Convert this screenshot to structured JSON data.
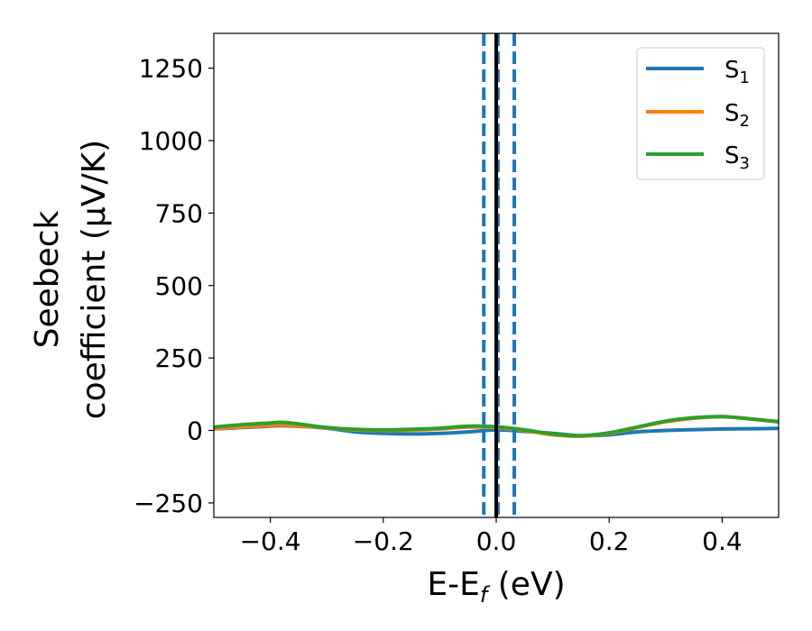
{
  "chart_data": {
    "type": "line",
    "xlabel": {
      "main": "E-E",
      "sub": "f",
      "suffix": " (eV)"
    },
    "ylabel": {
      "line1": "Seebeck",
      "line2": "coefficient  (μV/K)"
    },
    "xlim": [
      -0.5,
      0.5
    ],
    "ylim": [
      -300,
      1370
    ],
    "xticks": [
      -0.4,
      -0.2,
      0.0,
      0.2,
      0.4
    ],
    "xtick_labels": [
      "−0.4",
      "−0.2",
      "0.0",
      "0.2",
      "0.4"
    ],
    "yticks": [
      -250,
      0,
      250,
      500,
      750,
      1000,
      1250
    ],
    "ytick_labels": [
      "−250",
      "0",
      "250",
      "500",
      "750",
      "1000",
      "1250"
    ],
    "legend_position": "top-right",
    "reference_lines": {
      "solid": {
        "x": 0.0,
        "color": "#000000"
      },
      "dashed": [
        {
          "x": -0.022,
          "color": "#1f77b4"
        },
        {
          "x": 0.003,
          "color": "#1f77b4"
        },
        {
          "x": 0.032,
          "color": "#1f77b4"
        }
      ]
    },
    "series": [
      {
        "name": "S",
        "subscript": "1",
        "color": "#1f77b4",
        "x": [
          -0.5,
          -0.45,
          -0.4,
          -0.37,
          -0.3,
          -0.25,
          -0.2,
          -0.15,
          -0.1,
          -0.05,
          0.0,
          0.05,
          0.1,
          0.15,
          0.2,
          0.25,
          0.3,
          0.35,
          0.4,
          0.45,
          0.5
        ],
        "y": [
          5,
          10,
          15,
          16,
          8,
          -5,
          -10,
          -12,
          -10,
          -5,
          2,
          -3,
          -10,
          -18,
          -15,
          -5,
          0,
          3,
          5,
          6,
          7
        ]
      },
      {
        "name": "S",
        "subscript": "2",
        "color": "#ff7f0e",
        "x": [
          -0.5,
          -0.45,
          -0.4,
          -0.37,
          -0.3,
          -0.25,
          -0.2,
          -0.15,
          -0.1,
          -0.05,
          0.0,
          0.05,
          0.1,
          0.15,
          0.2,
          0.25,
          0.3,
          0.35,
          0.4,
          0.45,
          0.5
        ],
        "y": [
          6,
          12,
          17,
          18,
          9,
          2,
          0,
          1,
          5,
          12,
          10,
          0,
          -15,
          -20,
          -10,
          10,
          30,
          42,
          47,
          40,
          30
        ]
      },
      {
        "name": "S",
        "subscript": "3",
        "color": "#2ca02c",
        "x": [
          -0.5,
          -0.45,
          -0.4,
          -0.37,
          -0.3,
          -0.25,
          -0.2,
          -0.15,
          -0.1,
          -0.05,
          0.0,
          0.05,
          0.1,
          0.15,
          0.2,
          0.25,
          0.3,
          0.35,
          0.4,
          0.45,
          0.5
        ],
        "y": [
          12,
          20,
          26,
          27,
          10,
          4,
          2,
          4,
          8,
          15,
          13,
          2,
          -12,
          -18,
          -8,
          12,
          32,
          44,
          48,
          40,
          30
        ]
      }
    ]
  }
}
